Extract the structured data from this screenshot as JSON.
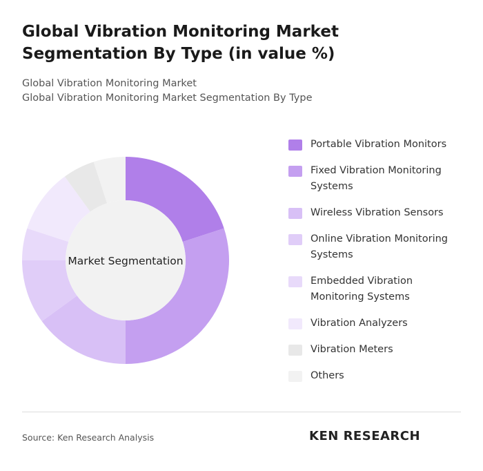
{
  "chart_data": {
    "type": "donut",
    "title": "Global Vibration Monitoring Market Segmentation By Type (in value %)",
    "subtitle_lines": [
      "Global Vibration Monitoring Market",
      "Global Vibration Monitoring Market Segmentation By Type"
    ],
    "center_label": "Market Segmentation",
    "categories": [
      "Portable Vibration Monitors",
      "Fixed Vibration Monitoring Systems",
      "Wireless Vibration Sensors",
      "Online Vibration Monitoring Systems",
      "Embedded Vibration Monitoring Systems",
      "Vibration Analyzers",
      "Vibration Meters",
      "Others"
    ],
    "values": [
      20,
      30,
      15,
      10,
      5,
      10,
      5,
      5
    ],
    "colors": [
      "#b07fe9",
      "#c49ff0",
      "#d8c0f6",
      "#e0cdf8",
      "#e8dafa",
      "#f1e9fc",
      "#e8e8e8",
      "#f2f2f2"
    ],
    "source": "Source: Ken Research Analysis",
    "logo": "KEN RESEARCH"
  }
}
